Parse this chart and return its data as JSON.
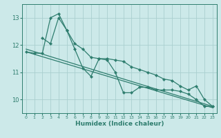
{
  "xlabel": "Humidex (Indice chaleur)",
  "xlim": [
    -0.5,
    23.5
  ],
  "ylim": [
    9.5,
    13.5
  ],
  "yticks": [
    10,
    11,
    12,
    13
  ],
  "xticks": [
    0,
    1,
    2,
    3,
    4,
    5,
    6,
    7,
    8,
    9,
    10,
    11,
    12,
    13,
    14,
    15,
    16,
    17,
    18,
    19,
    20,
    21,
    22,
    23
  ],
  "bg_color": "#cce9e9",
  "line_color": "#2e7d6e",
  "grid_color": "#aacfcf",
  "line1": {
    "x": [
      0,
      1,
      2,
      3,
      4,
      5,
      6,
      7,
      8,
      9,
      10,
      11,
      12,
      13,
      14,
      15,
      16,
      17,
      18,
      19,
      20,
      21,
      22,
      23
    ],
    "y": [
      11.75,
      11.7,
      11.7,
      13.0,
      13.15,
      12.55,
      11.85,
      11.15,
      10.85,
      11.5,
      11.45,
      11.0,
      10.25,
      10.25,
      10.45,
      10.45,
      10.35,
      10.35,
      10.35,
      10.3,
      10.2,
      10.0,
      9.75,
      9.75
    ]
  },
  "line2": {
    "x": [
      2,
      3,
      4,
      5,
      6,
      7,
      8,
      9,
      10,
      11,
      12,
      13,
      14,
      15,
      16,
      17,
      18,
      19,
      20,
      21,
      22,
      23
    ],
    "y": [
      12.25,
      12.05,
      13.0,
      12.55,
      12.05,
      11.85,
      11.55,
      11.5,
      11.5,
      11.45,
      11.4,
      11.2,
      11.1,
      11.0,
      10.9,
      10.75,
      10.7,
      10.5,
      10.35,
      10.5,
      10.0,
      9.75
    ]
  },
  "trend1": {
    "x": [
      0,
      23
    ],
    "y": [
      11.85,
      9.75
    ]
  },
  "trend2": {
    "x": [
      0,
      23
    ],
    "y": [
      11.75,
      9.7
    ]
  },
  "markersize": 2.2,
  "linewidth": 0.9
}
